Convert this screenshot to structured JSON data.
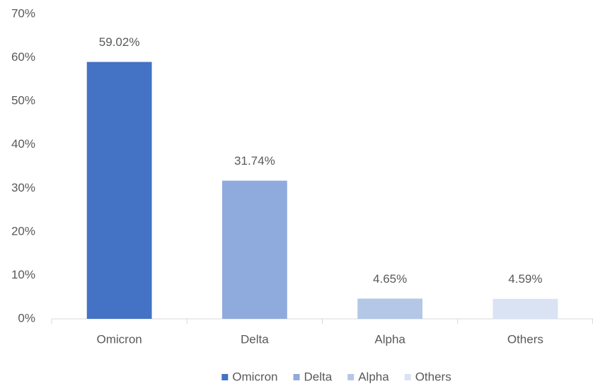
{
  "chart_data": {
    "type": "bar",
    "categories": [
      "Omicron",
      "Delta",
      "Alpha",
      "Others"
    ],
    "values": [
      59.02,
      31.74,
      4.65,
      4.59
    ],
    "value_labels": [
      "59.02%",
      "31.74%",
      "4.65%",
      "4.59%"
    ],
    "colors": [
      "#4472c4",
      "#8faadc",
      "#b4c7e7",
      "#dae3f3"
    ],
    "ylim": [
      0,
      70
    ],
    "yticks": [
      {
        "value": 0,
        "label": "0%"
      },
      {
        "value": 10,
        "label": "10%"
      },
      {
        "value": 20,
        "label": "20%"
      },
      {
        "value": 30,
        "label": "30%"
      },
      {
        "value": 40,
        "label": "40%"
      },
      {
        "value": 50,
        "label": "50%"
      },
      {
        "value": 60,
        "label": "60%"
      },
      {
        "value": 70,
        "label": "70%"
      }
    ],
    "grid": false,
    "legend": "bottom"
  }
}
